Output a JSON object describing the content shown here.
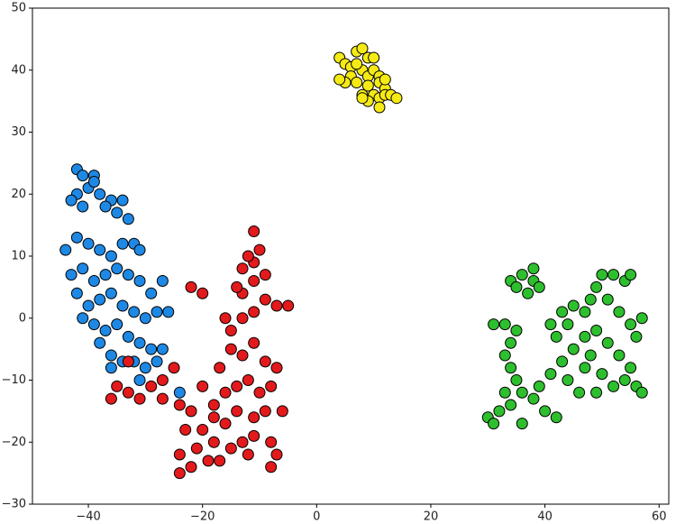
{
  "chart_data": {
    "type": "scatter",
    "xlim": [
      -49.8,
      61.7
    ],
    "ylim": [
      -30,
      50
    ],
    "xticks": [
      {
        "value": -40,
        "label": "−40"
      },
      {
        "value": -20,
        "label": "−20"
      },
      0,
      20,
      40,
      60
    ],
    "yticks": [
      {
        "value": -30,
        "label": "−30"
      },
      {
        "value": -20,
        "label": "−20"
      },
      {
        "value": -10,
        "label": "−10"
      },
      0,
      10,
      20,
      30,
      40,
      50
    ],
    "grid": false,
    "series": [
      {
        "color": "#1e88e5",
        "x": [
          -42,
          -41,
          -39,
          -40,
          -42,
          -38,
          -36,
          -34,
          -37,
          -35,
          -33,
          -41,
          -39,
          -43,
          -44,
          -42,
          -40,
          -38,
          -36,
          -34,
          -32,
          -31,
          -43,
          -41,
          -39,
          -37,
          -35,
          -33,
          -31,
          -29,
          -27,
          -42,
          -40,
          -38,
          -36,
          -34,
          -32,
          -30,
          -28,
          -26,
          -41,
          -39,
          -37,
          -35,
          -33,
          -31,
          -29,
          -27,
          -38,
          -36,
          -34,
          -32,
          -30,
          -28,
          -36,
          -31,
          -24
        ],
        "values": [
          24,
          23,
          23,
          21,
          20,
          20,
          19,
          19,
          18,
          17,
          16,
          18,
          22,
          19,
          11,
          13,
          12,
          11,
          10,
          12,
          12,
          11,
          7,
          8,
          6,
          7,
          8,
          7,
          6,
          4,
          6,
          4,
          2,
          3,
          4,
          2,
          1,
          0,
          1,
          1,
          0,
          -1,
          -2,
          -1,
          -3,
          -4,
          -5,
          -5,
          -4,
          -6,
          -7,
          -7,
          -8,
          -7,
          -8,
          -10,
          -12
        ]
      },
      {
        "color": "#e31a1c",
        "x": [
          -33,
          -35,
          -33,
          -36,
          -31,
          -29,
          -27,
          -25,
          -27,
          -24,
          -22,
          -20,
          -22,
          -20,
          -23,
          -21,
          -24,
          -22,
          -24,
          -19,
          -17,
          -18,
          -15,
          -13,
          -11,
          -8,
          -7,
          -8,
          -12,
          -16,
          -14,
          -11,
          -9,
          -6,
          -8,
          -10,
          -12,
          -14,
          -16,
          -17,
          -15,
          -13,
          -11,
          -9,
          -7,
          -15,
          -13,
          -11,
          -9,
          -7,
          -5,
          -16,
          -13,
          -11,
          -9,
          -13,
          -11,
          -10,
          -11,
          -12,
          -14,
          -18,
          -20,
          -18
        ],
        "values": [
          -7,
          -11,
          -12,
          -13,
          -13,
          -11,
          -10,
          -8,
          -13,
          -14,
          5,
          4,
          -15,
          -18,
          -18,
          -21,
          -22,
          -24,
          -25,
          -23,
          -23,
          -20,
          -21,
          -20,
          -19,
          -20,
          -22,
          -24,
          -22,
          -17,
          -15,
          -16,
          -15,
          -15,
          -11,
          -12,
          -10,
          -11,
          -12,
          -8,
          -5,
          -6,
          -4,
          -7,
          -8,
          -2,
          0,
          1,
          3,
          2,
          2,
          0,
          4,
          6,
          7,
          8,
          9,
          11,
          14,
          10,
          5,
          -16,
          -11,
          -14
        ]
      },
      {
        "color": "#f5ea14",
        "x": [
          4,
          5,
          6,
          7,
          8,
          9,
          10,
          6,
          8,
          9,
          10,
          11,
          7,
          9,
          11,
          12,
          8,
          10,
          11,
          12,
          13,
          14,
          11,
          9,
          5,
          4,
          7,
          12,
          8
        ],
        "values": [
          42,
          41,
          40.5,
          43,
          43.5,
          42,
          42,
          39,
          40,
          39,
          40,
          39,
          38,
          37.5,
          38,
          37,
          36,
          36,
          35.5,
          36,
          36,
          35.5,
          34,
          35,
          38,
          38.5,
          41,
          38.5,
          35.5
        ]
      },
      {
        "color": "#2ebf2e",
        "x": [
          34,
          36,
          38,
          35,
          37,
          39,
          38,
          30,
          31,
          32,
          34,
          33,
          35,
          34,
          33,
          34,
          35,
          33,
          31,
          36,
          38,
          40,
          42,
          36,
          39,
          41,
          43,
          45,
          47,
          44,
          46,
          42,
          41,
          43,
          45,
          44,
          47,
          48,
          49,
          50,
          52,
          54,
          55,
          51,
          53,
          55,
          56,
          57,
          49,
          51,
          53,
          55,
          50,
          52,
          54,
          56,
          57,
          49,
          47,
          48
        ],
        "values": [
          6,
          7,
          6,
          5,
          4,
          5,
          8,
          -16,
          -17,
          -15,
          -14,
          -12,
          -10,
          -8,
          -6,
          -4,
          -2,
          -1,
          -1,
          -12,
          -13,
          -15,
          -16,
          -17,
          -11,
          -9,
          -7,
          -5,
          -3,
          -10,
          -12,
          -3,
          -1,
          1,
          2,
          -1,
          1,
          3,
          5,
          7,
          7,
          6,
          7,
          3,
          1,
          -1,
          -3,
          0,
          -2,
          -4,
          -6,
          -8,
          -9,
          -11,
          -10,
          -11,
          -12,
          -12,
          -8,
          -6
        ]
      }
    ]
  }
}
